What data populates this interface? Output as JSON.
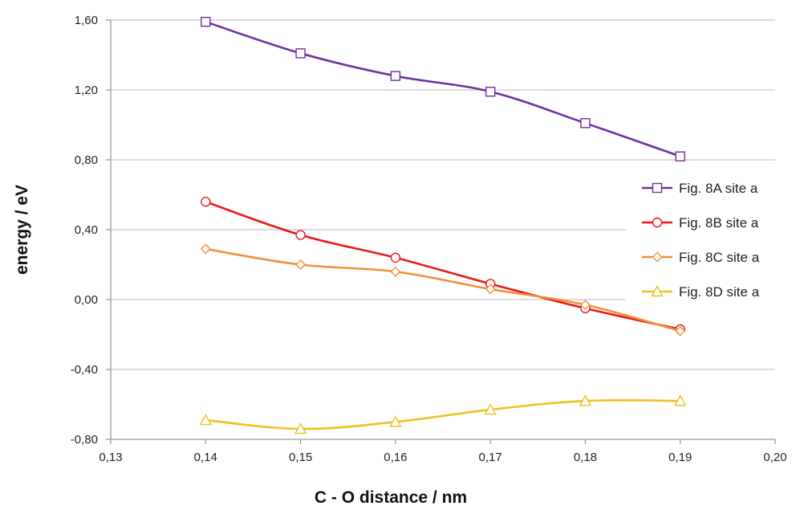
{
  "chart_data": {
    "type": "line",
    "xlabel": "C - O distance / nm",
    "ylabel": "energy / eV",
    "xlim": [
      0.13,
      0.2
    ],
    "ylim": [
      -0.8,
      1.6
    ],
    "x_ticks": [
      "0,13",
      "0,14",
      "0,15",
      "0,16",
      "0,17",
      "0,18",
      "0,19",
      "0,20"
    ],
    "y_ticks": [
      "1,60",
      "1,20",
      "0,80",
      "0,40",
      "0,00",
      "-0,40",
      "-0,80"
    ],
    "x_tick_values": [
      0.13,
      0.14,
      0.15,
      0.16,
      0.17,
      0.18,
      0.19,
      0.2
    ],
    "y_tick_values": [
      1.6,
      1.2,
      0.8,
      0.4,
      0.0,
      -0.4,
      -0.8
    ],
    "x": [
      0.14,
      0.15,
      0.16,
      0.17,
      0.18,
      0.19
    ],
    "grid": "horizontal",
    "legend_position": "right",
    "series": [
      {
        "name": "Fig. 8A site a",
        "color": "#7030a0",
        "marker": "square",
        "values": [
          1.59,
          1.41,
          1.28,
          1.19,
          1.01,
          0.82
        ]
      },
      {
        "name": "Fig. 8B site a",
        "color": "#e81a1a",
        "marker": "circle",
        "values": [
          0.56,
          0.37,
          0.24,
          0.09,
          -0.05,
          -0.17
        ]
      },
      {
        "name": "Fig. 8C site a",
        "color": "#f0913c",
        "marker": "diamond",
        "values": [
          0.29,
          0.2,
          0.16,
          0.06,
          -0.03,
          -0.18
        ]
      },
      {
        "name": "Fig. 8D site a",
        "color": "#f0c020",
        "marker": "triangle",
        "values": [
          -0.69,
          -0.74,
          -0.7,
          -0.63,
          -0.58,
          -0.58
        ]
      }
    ]
  }
}
